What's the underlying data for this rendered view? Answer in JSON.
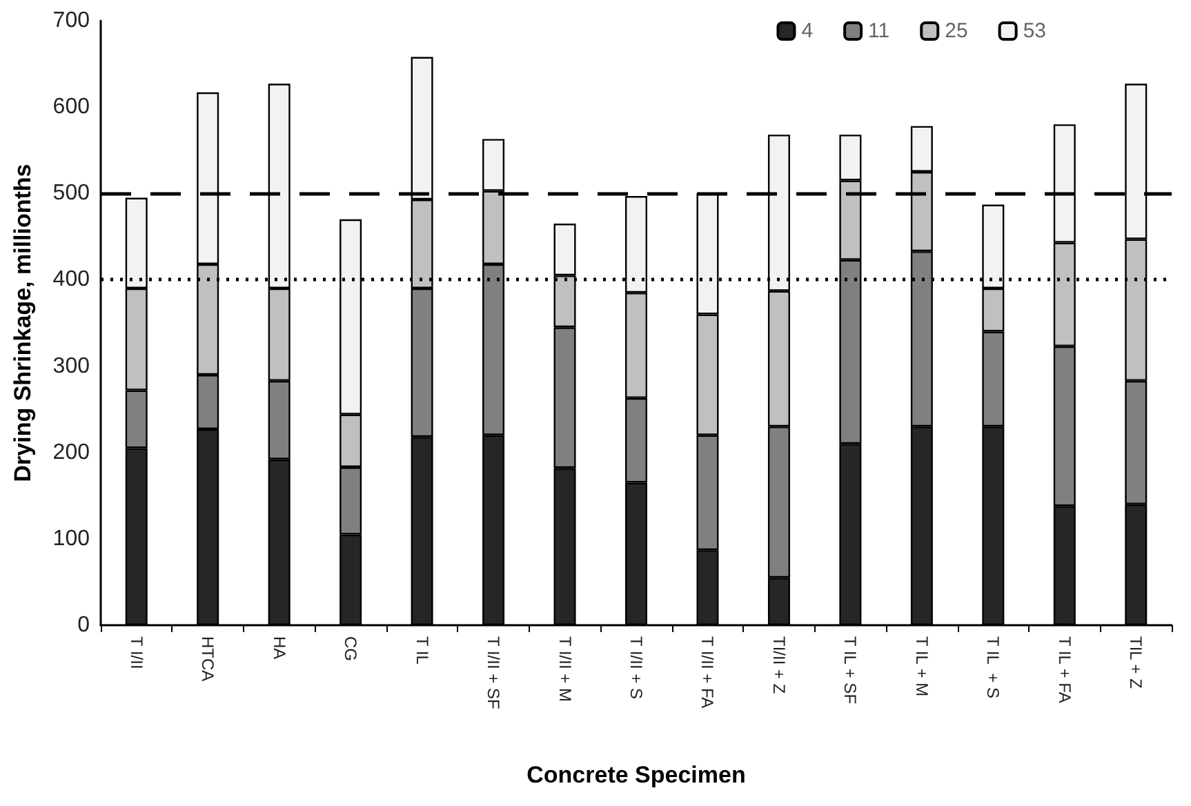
{
  "chart_data": {
    "type": "bar",
    "stacked": true,
    "xlabel": "Concrete Specimen",
    "ylabel": "Drying Shrinkage, millionths",
    "categories": [
      "T I/II",
      "HTCA",
      "HA",
      "CG",
      "T IL",
      "T I/II + SF",
      "T I/II + M",
      "T I/II + S",
      "T I/II + FA",
      "TI/II + Z",
      "T IL + SF",
      "T IL + M",
      "T IL  + S",
      "T IL + FA",
      "TIL + Z"
    ],
    "series": [
      {
        "name": "4",
        "color": "#262626",
        "values": [
          205,
          227,
          192,
          105,
          218,
          220,
          182,
          165,
          87,
          55,
          210,
          230,
          230,
          138,
          140
        ]
      },
      {
        "name": "11",
        "color": "#808080",
        "values": [
          67,
          63,
          91,
          78,
          172,
          198,
          163,
          98,
          133,
          175,
          213,
          203,
          110,
          185,
          143
        ]
      },
      {
        "name": "25",
        "color": "#c0c0c0",
        "values": [
          118,
          128,
          107,
          61,
          103,
          85,
          60,
          122,
          140,
          157,
          92,
          92,
          50,
          120,
          164
        ]
      },
      {
        "name": "53",
        "color": "#f2f2f2",
        "values": [
          105,
          199,
          237,
          226,
          165,
          60,
          60,
          112,
          140,
          181,
          53,
          53,
          97,
          137,
          180
        ]
      }
    ],
    "ylim": [
      0,
      700
    ],
    "yticks": [
      0,
      100,
      200,
      300,
      400,
      500,
      600,
      700
    ],
    "grid": false,
    "legend": "top right",
    "ref_lines": [
      {
        "axis": "y",
        "value": 500,
        "line_style": "dashed",
        "color": "#000000"
      },
      {
        "axis": "y",
        "value": 400,
        "line_style": "dotted",
        "color": "#000000"
      }
    ]
  }
}
